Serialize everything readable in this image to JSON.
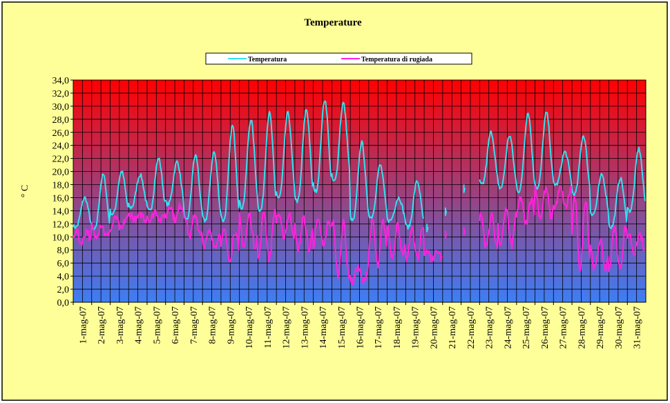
{
  "chart_data": {
    "type": "line",
    "title": "Temperature",
    "xlabel": "",
    "ylabel": "° C",
    "ylim": [
      0,
      34
    ],
    "ytick_step": 2,
    "ytick_labels": [
      "0,0",
      "2,0",
      "4,0",
      "6,0",
      "8,0",
      "10,0",
      "12,0",
      "14,0",
      "16,0",
      "18,0",
      "20,0",
      "22,0",
      "24,0",
      "26,0",
      "28,0",
      "30,0",
      "32,0",
      "34,0"
    ],
    "categories": [
      "1-mag-07",
      "2-mag-07",
      "3-mag-07",
      "4-mag-07",
      "5-mag-07",
      "6-mag-07",
      "7-mag-07",
      "8-mag-07",
      "9-mag-07",
      "10-mag-07",
      "11-mag-07",
      "12-mag-07",
      "13-mag-07",
      "14-mag-07",
      "15-mag-07",
      "16-mag-07",
      "17-mag-07",
      "18-mag-07",
      "19-mag-07",
      "20-mag-07",
      "21-mag-07",
      "22-mag-07",
      "23-mag-07",
      "24-mag-07",
      "25-mag-07",
      "26-mag-07",
      "27-mag-07",
      "28-mag-07",
      "29-mag-07",
      "30-mag-07",
      "31-mag-07"
    ],
    "legend_position": "top-center",
    "grid": true,
    "background_gradient": {
      "top": "#ff0000",
      "bottom": "#3d7ef5"
    },
    "series": [
      {
        "name": "Temperatura",
        "color": "#33e0f0",
        "daily_min": [
          11.5,
          11.0,
          13.5,
          14.5,
          14.0,
          15.0,
          12.5,
          12.5,
          12.5,
          14.5,
          14.0,
          16.0,
          15.5,
          17.0,
          18.5,
          12.5,
          13.0,
          12.5,
          11.5,
          12.0,
          null,
          null,
          18.0,
          17.5,
          17.0,
          17.5,
          18.0,
          16.5,
          13.5,
          11.5,
          14.0
        ],
        "daily_max": [
          16.0,
          19.5,
          20.0,
          19.5,
          22.0,
          21.5,
          22.5,
          23.0,
          27.0,
          28.0,
          29.0,
          29.0,
          29.5,
          31.0,
          30.5,
          24.5,
          21.0,
          16.0,
          18.5,
          null,
          14.5,
          18.0,
          26.0,
          25.5,
          29.0,
          29.0,
          23.0,
          25.5,
          19.5,
          19.0,
          23.5
        ]
      },
      {
        "name": "Temperatura di rugiada",
        "color": "#ff22dd",
        "daily_min": [
          9.0,
          10.0,
          11.0,
          12.5,
          12.5,
          12.5,
          10.0,
          8.5,
          6.5,
          8.5,
          6.5,
          10.0,
          8.0,
          8.5,
          4.0,
          3.0,
          5.5,
          7.0,
          6.5,
          6.5,
          null,
          null,
          8.5,
          8.5,
          12.0,
          13.0,
          14.5,
          5.0,
          5.0,
          5.0,
          7.5
        ],
        "daily_max": [
          11.0,
          12.0,
          13.0,
          13.5,
          14.0,
          15.0,
          13.5,
          11.0,
          11.0,
          13.5,
          14.0,
          13.5,
          13.0,
          12.5,
          12.5,
          5.5,
          12.5,
          12.0,
          11.5,
          8.0,
          11.0,
          11.5,
          13.5,
          14.5,
          16.0,
          17.5,
          17.5,
          16.0,
          9.5,
          11.5,
          10.5
        ]
      }
    ]
  }
}
